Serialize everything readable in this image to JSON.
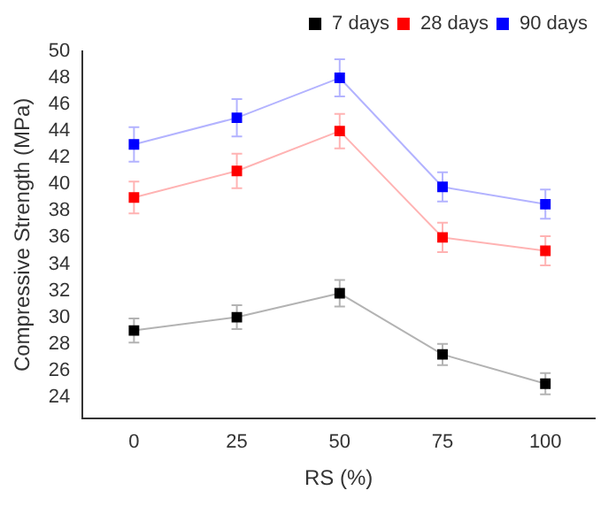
{
  "chart_data": {
    "type": "line",
    "xlabel": "RS (%)",
    "ylabel": "Compressive Strength (MPa)",
    "x": [
      0,
      25,
      50,
      75,
      100
    ],
    "series": [
      {
        "name": "7 days",
        "color": "#000000",
        "values": [
          29,
          30,
          31.8,
          27.2,
          25
        ],
        "errors": [
          0.9,
          0.9,
          1,
          0.8,
          0.8
        ]
      },
      {
        "name": "28 days",
        "color": "#ff0000",
        "values": [
          39,
          41,
          44,
          36,
          35
        ],
        "errors": [
          1.2,
          1.3,
          1.3,
          1.1,
          1.1
        ]
      },
      {
        "name": "90 days",
        "color": "#0000ff",
        "values": [
          43,
          45,
          48,
          39.8,
          38.5
        ],
        "errors": [
          1.3,
          1.4,
          1.4,
          1.1,
          1.1
        ]
      }
    ],
    "xlim": [
      -12.5,
      112
    ],
    "xticks": [
      0,
      25,
      50,
      75,
      100
    ],
    "ylim": [
      22.4,
      50
    ],
    "yticks": [
      24,
      26,
      28,
      30,
      32,
      34,
      36,
      38,
      40,
      42,
      44,
      46,
      48,
      50
    ],
    "grid": false,
    "legend": "top right",
    "marker": "square",
    "line_style": "solid"
  }
}
